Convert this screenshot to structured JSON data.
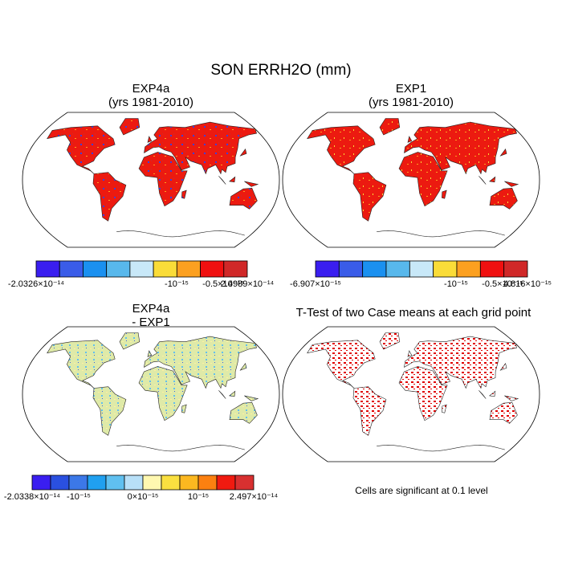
{
  "title": "SON ERRH2O (mm)",
  "panels": [
    {
      "title": "EXP4a",
      "subtitle": "(yrs 1981-2010)",
      "colorbar": {
        "colors": [
          "#3a1ef0",
          "#3a5ce8",
          "#1a90f0",
          "#58b8ec",
          "#c8e8f8",
          "#fadc38",
          "#fca020",
          "#f01010",
          "#d02828"
        ],
        "labels": [
          "-2.0326×10⁻¹⁴",
          "-10⁻¹⁵",
          "-0.5×10⁻¹⁵",
          "2.4989×10⁻¹⁴"
        ]
      }
    },
    {
      "title": "EXP1",
      "subtitle": "(yrs 1981-2010)",
      "colorbar": {
        "colors": [
          "#3a1ef0",
          "#3a5ce8",
          "#1a90f0",
          "#58b8ec",
          "#c8e8f8",
          "#fadc38",
          "#fca020",
          "#f01010",
          "#d02828"
        ],
        "labels": [
          "-6.907×10⁻¹⁵",
          "-10⁻¹⁵",
          "-0.5×10⁻¹⁵",
          "4.816×10⁻¹⁵"
        ]
      }
    },
    {
      "title": "EXP4a",
      "subtitle": "- EXP1",
      "colorbar": {
        "colors": [
          "#3a1ef0",
          "#2a50e0",
          "#3c78e8",
          "#20a0f0",
          "#60c0f0",
          "#b8e0f8",
          "#fff8b0",
          "#fae040",
          "#fcb820",
          "#fc8010",
          "#f01a10",
          "#d83030"
        ],
        "labels": [
          "-2.0338×10⁻¹⁴",
          "-10⁻¹⁵",
          "0×10⁻¹⁵",
          "10⁻¹⁵",
          "2.497×10⁻¹⁴"
        ]
      }
    },
    {
      "title": "T-Test of two Case means at each grid point",
      "note": "Cells are significant at 0.1 level"
    }
  ]
}
